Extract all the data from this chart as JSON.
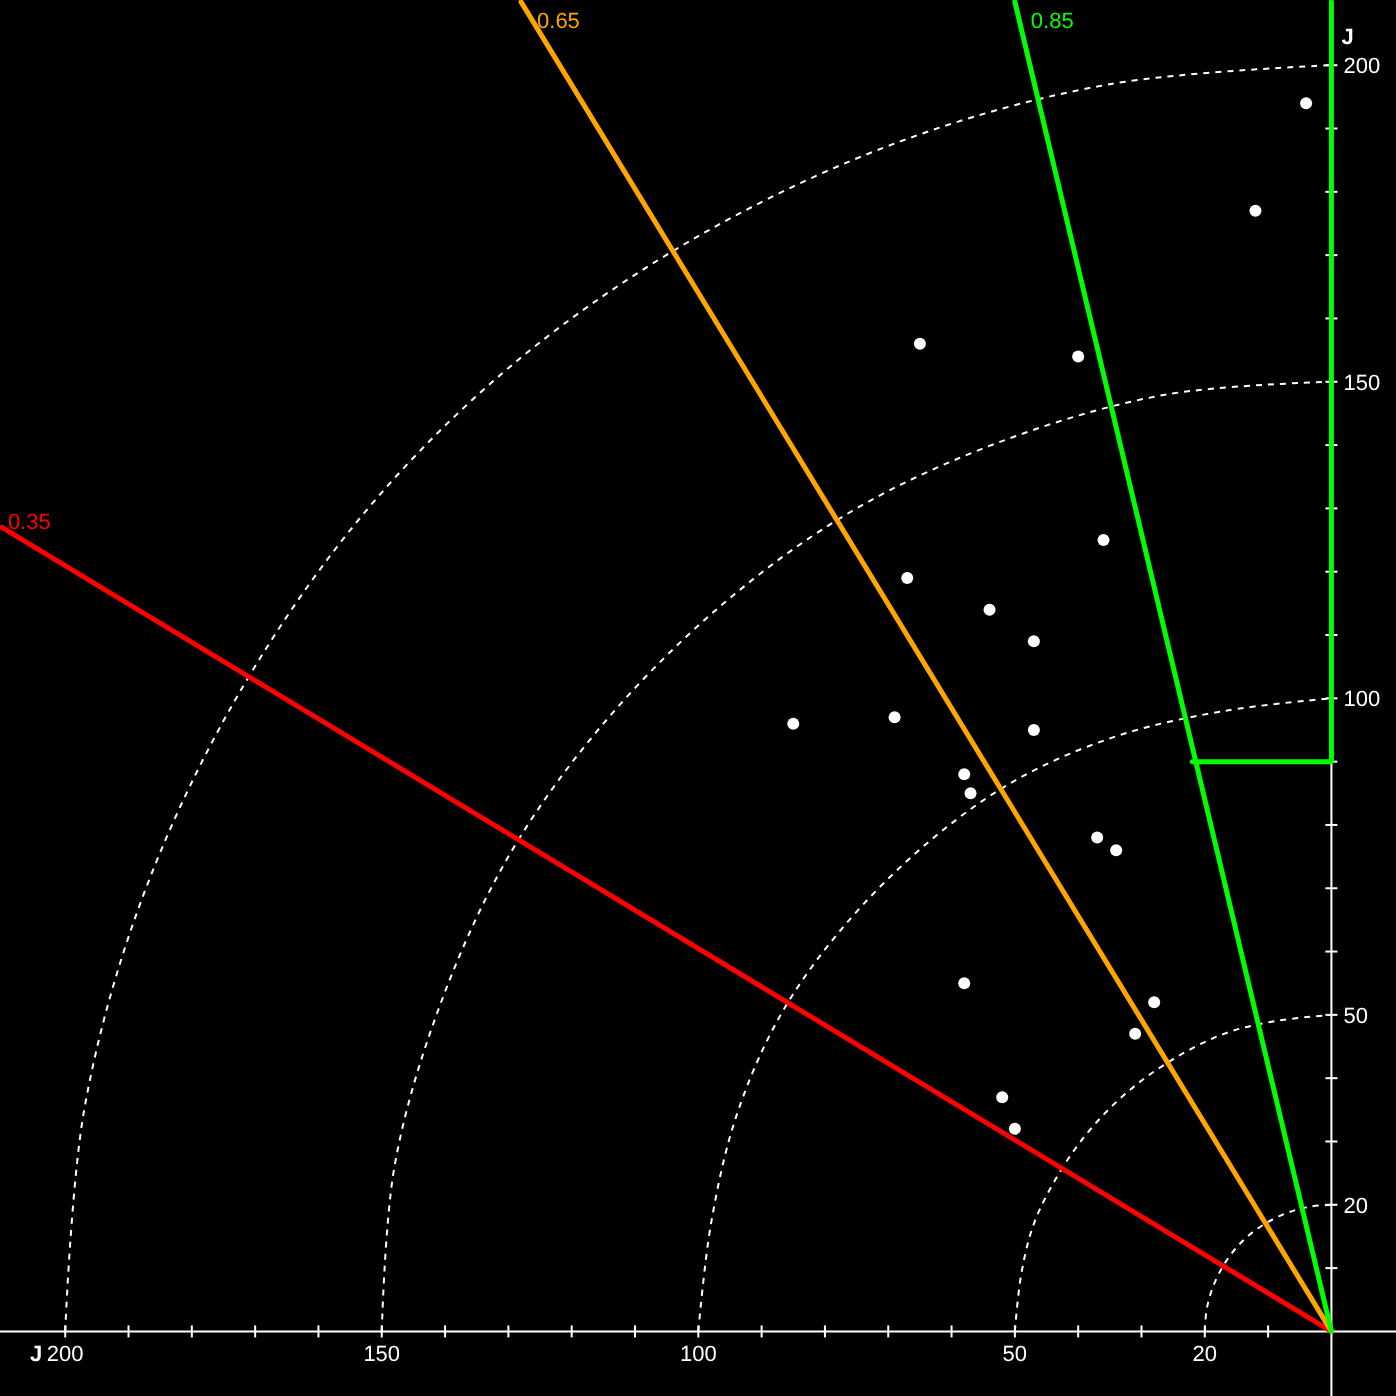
{
  "chart_data": {
    "type": "scatter",
    "xlabel": "J",
    "ylabel": "J",
    "xlim": [
      210.3,
      -10.2
    ],
    "ylim": [
      -10.2,
      210.3
    ],
    "xticks": [
      {
        "value": 10,
        "label": null
      },
      20,
      {
        "value": 30,
        "label": null
      },
      {
        "value": 40,
        "label": null
      },
      50,
      {
        "value": 60,
        "label": null
      },
      {
        "value": 70,
        "label": null
      },
      {
        "value": 80,
        "label": null
      },
      {
        "value": 90,
        "label": null
      },
      100,
      {
        "value": 110,
        "label": null
      },
      {
        "value": 120,
        "label": null
      },
      {
        "value": 130,
        "label": null
      },
      {
        "value": 140,
        "label": null
      },
      150,
      {
        "value": 160,
        "label": null
      },
      {
        "value": 170,
        "label": null
      },
      {
        "value": 180,
        "label": null
      },
      {
        "value": 190,
        "label": null
      },
      200
    ],
    "yticks": [
      {
        "value": 10,
        "label": null
      },
      20,
      {
        "value": 30,
        "label": null
      },
      {
        "value": 40,
        "label": null
      },
      50,
      {
        "value": 60,
        "label": null
      },
      {
        "value": 70,
        "label": null
      },
      {
        "value": 80,
        "label": null
      },
      {
        "value": 90,
        "label": null
      },
      100,
      {
        "value": 110,
        "label": null
      },
      {
        "value": 120,
        "label": null
      },
      {
        "value": 130,
        "label": null
      },
      {
        "value": 140,
        "label": null
      },
      150,
      {
        "value": 160,
        "label": null
      },
      {
        "value": 170,
        "label": null
      },
      {
        "value": 180,
        "label": null
      },
      {
        "value": 190,
        "label": null
      },
      200
    ],
    "series": [
      {
        "type": "line",
        "color": "#ffffff",
        "line_style": "dashed",
        "x": [
          20,
          19.7,
          18.8,
          17.3,
          15.3,
          12.9,
          10,
          6.8,
          3.5,
          0
        ],
        "values": [
          0,
          3.5,
          6.8,
          10,
          12.9,
          15.3,
          17.3,
          18.8,
          19.7,
          20
        ]
      },
      {
        "type": "line",
        "color": "#ffffff",
        "line_style": "dashed",
        "x": [
          50,
          49,
          47,
          43,
          38,
          32,
          25,
          17,
          9,
          0
        ],
        "values": [
          0,
          9,
          17,
          25,
          32,
          38,
          43,
          47,
          49,
          50
        ]
      },
      {
        "type": "line",
        "color": "#ffffff",
        "line_style": "dashed",
        "x": [
          100,
          98,
          94,
          87,
          77,
          64,
          50,
          34,
          17,
          0
        ],
        "values": [
          0,
          17,
          34,
          50,
          64,
          77,
          87,
          94,
          98,
          100
        ]
      },
      {
        "type": "line",
        "color": "#ffffff",
        "line_style": "dashed",
        "x": [
          150,
          148,
          141,
          130,
          115,
          96,
          75,
          51,
          26,
          0
        ],
        "values": [
          0,
          26,
          51,
          75,
          96,
          115,
          130,
          141,
          148,
          150
        ]
      },
      {
        "type": "line",
        "color": "#ffffff",
        "line_style": "dashed",
        "x": [
          200,
          197,
          188,
          173,
          153,
          129,
          100,
          68,
          35,
          0
        ],
        "values": [
          0,
          35,
          68,
          100,
          129,
          153,
          173,
          188,
          197,
          200
        ]
      },
      {
        "type": "line",
        "name": "0.35",
        "color": "#ff0000",
        "x": [
          0,
          210
        ],
        "values": [
          0,
          127
        ]
      },
      {
        "type": "line",
        "name": "0.65",
        "color": "#ffa500",
        "x": [
          0,
          128
        ],
        "values": [
          0,
          210
        ]
      },
      {
        "type": "line",
        "name": "0.85",
        "color": "#00ff00",
        "x": [
          0,
          50
        ],
        "values": [
          0,
          210
        ]
      },
      {
        "type": "line",
        "color": "#00ff00",
        "x": [
          22,
          0,
          0
        ],
        "values": [
          90,
          90,
          210
        ]
      },
      {
        "color": "#ffffff",
        "marker": "circle",
        "x": [
          4,
          12,
          65,
          40,
          36,
          67,
          54,
          47,
          85,
          69,
          47,
          58,
          57,
          37,
          34,
          58,
          28,
          31,
          52,
          50
        ],
        "values": [
          194,
          177,
          156,
          154,
          125,
          119,
          114,
          109,
          96,
          97,
          95,
          88,
          85,
          78,
          76,
          55,
          52,
          47,
          37,
          32
        ]
      }
    ]
  }
}
